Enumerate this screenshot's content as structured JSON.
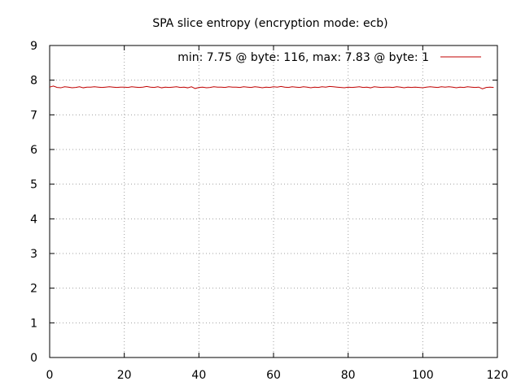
{
  "chart_data": {
    "type": "line",
    "title": "SPA slice entropy (encryption mode: ecb)",
    "xlabel": "",
    "ylabel": "",
    "xlim": [
      0,
      120
    ],
    "ylim": [
      0,
      9
    ],
    "xticks": [
      "0",
      "20",
      "40",
      "60",
      "80",
      "100",
      "120"
    ],
    "yticks": [
      "0",
      "1",
      "2",
      "3",
      "4",
      "5",
      "6",
      "7",
      "8",
      "9"
    ],
    "grid": true,
    "legend_position": "top-right",
    "series": [
      {
        "name": "min: 7.75 @ byte: 116, max: 7.83 @ byte: 1",
        "color": "#c00000",
        "x": [
          0,
          1,
          2,
          3,
          4,
          5,
          6,
          7,
          8,
          9,
          10,
          11,
          12,
          13,
          14,
          15,
          16,
          17,
          18,
          19,
          20,
          21,
          22,
          23,
          24,
          25,
          26,
          27,
          28,
          29,
          30,
          31,
          32,
          33,
          34,
          35,
          36,
          37,
          38,
          39,
          40,
          41,
          42,
          43,
          44,
          45,
          46,
          47,
          48,
          49,
          50,
          51,
          52,
          53,
          54,
          55,
          56,
          57,
          58,
          59,
          60,
          61,
          62,
          63,
          64,
          65,
          66,
          67,
          68,
          69,
          70,
          71,
          72,
          73,
          74,
          75,
          76,
          77,
          78,
          79,
          80,
          81,
          82,
          83,
          84,
          85,
          86,
          87,
          88,
          89,
          90,
          91,
          92,
          93,
          94,
          95,
          96,
          97,
          98,
          99,
          100,
          101,
          102,
          103,
          104,
          105,
          106,
          107,
          108,
          109,
          110,
          111,
          112,
          113,
          114,
          115,
          116,
          117,
          118,
          119
        ],
        "y": [
          7.8,
          7.83,
          7.79,
          7.78,
          7.81,
          7.8,
          7.78,
          7.79,
          7.81,
          7.78,
          7.8,
          7.8,
          7.81,
          7.8,
          7.79,
          7.8,
          7.81,
          7.8,
          7.79,
          7.8,
          7.8,
          7.79,
          7.81,
          7.8,
          7.79,
          7.8,
          7.82,
          7.8,
          7.79,
          7.81,
          7.78,
          7.8,
          7.79,
          7.8,
          7.81,
          7.79,
          7.8,
          7.78,
          7.81,
          7.76,
          7.79,
          7.8,
          7.78,
          7.79,
          7.81,
          7.8,
          7.8,
          7.79,
          7.81,
          7.8,
          7.8,
          7.79,
          7.81,
          7.8,
          7.79,
          7.81,
          7.8,
          7.78,
          7.8,
          7.79,
          7.81,
          7.8,
          7.82,
          7.8,
          7.79,
          7.81,
          7.8,
          7.79,
          7.81,
          7.8,
          7.78,
          7.8,
          7.79,
          7.81,
          7.8,
          7.82,
          7.81,
          7.8,
          7.79,
          7.78,
          7.8,
          7.79,
          7.8,
          7.81,
          7.79,
          7.8,
          7.78,
          7.81,
          7.8,
          7.79,
          7.8,
          7.8,
          7.79,
          7.81,
          7.8,
          7.78,
          7.8,
          7.79,
          7.8,
          7.79,
          7.78,
          7.8,
          7.81,
          7.8,
          7.79,
          7.81,
          7.8,
          7.81,
          7.8,
          7.78,
          7.8,
          7.79,
          7.81,
          7.8,
          7.79,
          7.8,
          7.75,
          7.79,
          7.8,
          7.79
        ]
      }
    ]
  }
}
